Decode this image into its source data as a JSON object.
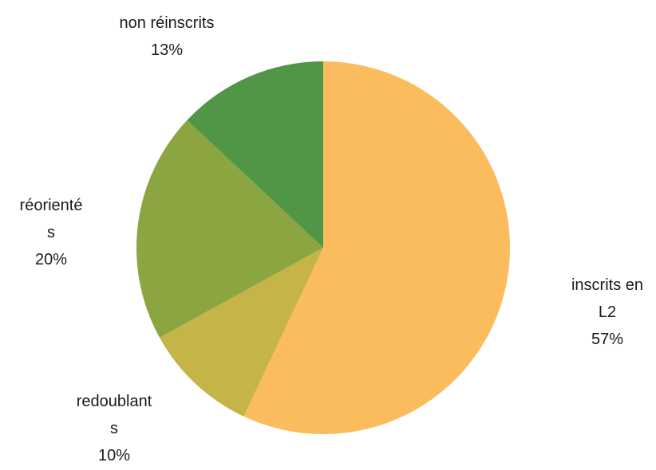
{
  "chart_data": {
    "type": "pie",
    "slices": [
      {
        "label": "inscrits en L2",
        "label_lines": [
          "inscrits en",
          "L2"
        ],
        "value": 57,
        "value_label": "57%",
        "color": "#FBBC5E"
      },
      {
        "label": "redoublants",
        "label_lines": [
          "redoublant",
          "s"
        ],
        "value": 10,
        "value_label": "10%",
        "color": "#C5B448"
      },
      {
        "label": "réorientés",
        "label_lines": [
          "réorienté",
          "s"
        ],
        "value": 20,
        "value_label": "20%",
        "color": "#8BA641"
      },
      {
        "label": "non réinscrits",
        "label_lines": [
          "non réinscrits"
        ],
        "value": 13,
        "value_label": "13%",
        "color": "#519647"
      }
    ],
    "start_angle_deg": 0,
    "direction": "clockwise",
    "legend": "none"
  }
}
